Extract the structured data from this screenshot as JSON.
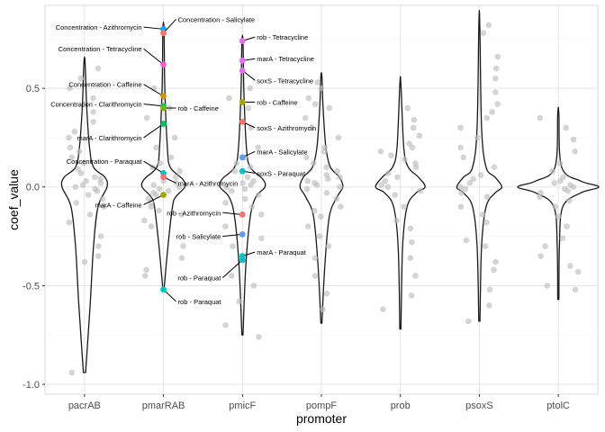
{
  "chart_data": {
    "type": "violin",
    "xlabel": "promoter",
    "ylabel": "coef_value",
    "ylim": [
      -1.05,
      0.92
    ],
    "yticks": [
      {
        "value": 0.5,
        "label": "0.5"
      },
      {
        "value": 0.0,
        "label": "0.0"
      },
      {
        "value": -0.5,
        "label": "-0.5"
      },
      {
        "value": -1.0,
        "label": "-1.0"
      }
    ],
    "categories": [
      "pacrAB",
      "pmarRAB",
      "pmicF",
      "pompF",
      "prob",
      "psoxS",
      "ptolC"
    ],
    "grid": true,
    "violins": [
      {
        "category": "pacrAB",
        "min": -0.94,
        "max": 0.63,
        "widths": [
          [
            -0.94,
            0.01
          ],
          [
            -0.6,
            0.05
          ],
          [
            -0.3,
            0.08
          ],
          [
            -0.1,
            0.12
          ],
          [
            0.0,
            0.2
          ],
          [
            0.05,
            0.18
          ],
          [
            0.1,
            0.08
          ],
          [
            0.2,
            0.045
          ],
          [
            0.4,
            0.02
          ],
          [
            0.63,
            0.005
          ]
        ]
      },
      {
        "category": "pmarRAB",
        "min": -0.52,
        "max": 0.8,
        "widths": [
          [
            -0.52,
            0.005
          ],
          [
            -0.3,
            0.04
          ],
          [
            -0.1,
            0.08
          ],
          [
            -0.05,
            0.11
          ],
          [
            0.0,
            0.19
          ],
          [
            0.04,
            0.17
          ],
          [
            0.1,
            0.06
          ],
          [
            0.2,
            0.035
          ],
          [
            0.5,
            0.012
          ],
          [
            0.8,
            0.005
          ]
        ]
      },
      {
        "category": "pmicF",
        "min": -0.75,
        "max": 0.74,
        "widths": [
          [
            -0.75,
            0.005
          ],
          [
            -0.4,
            0.03
          ],
          [
            -0.15,
            0.07
          ],
          [
            -0.05,
            0.12
          ],
          [
            0.0,
            0.2
          ],
          [
            0.04,
            0.18
          ],
          [
            0.1,
            0.07
          ],
          [
            0.2,
            0.035
          ],
          [
            0.5,
            0.012
          ],
          [
            0.74,
            0.005
          ]
        ]
      },
      {
        "category": "pompF",
        "min": -0.69,
        "max": 0.56,
        "widths": [
          [
            -0.69,
            0.005
          ],
          [
            -0.4,
            0.03
          ],
          [
            -0.15,
            0.07
          ],
          [
            -0.05,
            0.14
          ],
          [
            0.0,
            0.19
          ],
          [
            0.05,
            0.16
          ],
          [
            0.1,
            0.08
          ],
          [
            0.2,
            0.04
          ],
          [
            0.4,
            0.015
          ],
          [
            0.56,
            0.005
          ]
        ]
      },
      {
        "category": "prob",
        "min": -0.72,
        "max": 0.52,
        "widths": [
          [
            -0.72,
            0.005
          ],
          [
            -0.3,
            0.02
          ],
          [
            -0.1,
            0.06
          ],
          [
            -0.03,
            0.14
          ],
          [
            0.0,
            0.22
          ],
          [
            0.05,
            0.16
          ],
          [
            0.1,
            0.07
          ],
          [
            0.2,
            0.03
          ],
          [
            0.52,
            0.005
          ]
        ]
      },
      {
        "category": "psoxS",
        "min": -0.68,
        "max": 0.83,
        "widths": [
          [
            -0.68,
            0.005
          ],
          [
            -0.3,
            0.02
          ],
          [
            -0.1,
            0.06
          ],
          [
            -0.03,
            0.14
          ],
          [
            0.0,
            0.2
          ],
          [
            0.05,
            0.14
          ],
          [
            0.1,
            0.06
          ],
          [
            0.3,
            0.02
          ],
          [
            0.83,
            0.004
          ]
        ]
      },
      {
        "category": "ptolC",
        "min": -0.57,
        "max": 0.37,
        "widths": [
          [
            -0.57,
            0.005
          ],
          [
            -0.3,
            0.01
          ],
          [
            -0.1,
            0.04
          ],
          [
            -0.03,
            0.2
          ],
          [
            0.0,
            0.36
          ],
          [
            0.03,
            0.2
          ],
          [
            0.1,
            0.03
          ],
          [
            0.37,
            0.005
          ]
        ]
      }
    ],
    "points": {
      "pacrAB": [
        -0.94,
        -0.38,
        -0.35,
        -0.3,
        -0.25,
        -0.18,
        -0.14,
        -0.1,
        -0.08,
        -0.06,
        -0.04,
        -0.02,
        -0.01,
        0.0,
        0.01,
        0.02,
        0.03,
        0.04,
        0.05,
        0.07,
        0.09,
        0.12,
        0.15,
        0.18,
        0.2,
        0.25,
        0.28,
        0.33,
        0.38,
        0.45,
        0.5,
        0.55,
        0.6
      ],
      "pmarRAB": [
        -0.45,
        -0.42,
        -0.36,
        -0.3,
        -0.2,
        -0.17,
        -0.14,
        -0.12,
        -0.1,
        -0.08,
        -0.06,
        -0.04,
        -0.03,
        -0.02,
        -0.01,
        0.0,
        0.01,
        0.02,
        0.03,
        0.05,
        0.08,
        0.1,
        0.12,
        0.15,
        0.2,
        0.25,
        0.35,
        0.4,
        0.5
      ],
      "pmicF": [
        -0.76,
        -0.7,
        -0.58,
        -0.5,
        -0.45,
        -0.3,
        -0.26,
        -0.2,
        -0.14,
        -0.1,
        -0.08,
        -0.06,
        -0.04,
        -0.02,
        -0.01,
        0.0,
        0.01,
        0.02,
        0.03,
        0.05,
        0.08,
        0.1,
        0.12,
        0.15,
        0.2,
        0.3,
        0.4,
        0.45,
        0.5
      ],
      "pompF": [
        -0.62,
        -0.54,
        -0.45,
        -0.36,
        -0.3,
        -0.25,
        -0.2,
        -0.15,
        -0.12,
        -0.1,
        -0.06,
        -0.03,
        -0.01,
        0.0,
        0.01,
        0.02,
        0.03,
        0.04,
        0.05,
        0.06,
        0.08,
        0.1,
        0.12,
        0.15,
        0.18,
        0.2,
        0.25,
        0.3,
        0.35,
        0.4,
        0.42,
        0.45,
        0.5,
        0.53
      ],
      "prob": [
        -0.62,
        -0.55,
        -0.45,
        -0.36,
        -0.28,
        -0.21,
        -0.17,
        -0.1,
        -0.04,
        -0.02,
        0.0,
        0.01,
        0.03,
        0.05,
        0.07,
        0.1,
        0.12,
        0.14,
        0.16,
        0.18,
        0.2,
        0.22,
        0.26,
        0.3,
        0.34,
        0.4
      ],
      "psoxS": [
        -0.68,
        -0.6,
        -0.52,
        -0.42,
        -0.38,
        -0.3,
        -0.27,
        -0.18,
        -0.14,
        -0.1,
        -0.05,
        -0.03,
        -0.01,
        0.0,
        0.02,
        0.04,
        0.06,
        0.1,
        0.15,
        0.2,
        0.25,
        0.3,
        0.35,
        0.38,
        0.42,
        0.48,
        0.55,
        0.6,
        0.66,
        0.78,
        0.82
      ],
      "ptolC": [
        -0.52,
        -0.5,
        -0.43,
        -0.4,
        -0.35,
        -0.3,
        -0.26,
        -0.2,
        -0.15,
        -0.1,
        -0.07,
        -0.05,
        -0.03,
        -0.02,
        -0.01,
        0.0,
        0.01,
        0.02,
        0.03,
        0.05,
        0.08,
        0.12,
        0.18,
        0.24,
        0.3,
        0.35
      ]
    },
    "highlighted": [
      {
        "category": "pmarRAB",
        "y": 0.8,
        "color": "#00A9FF",
        "label": "Concentration - Azithromycin",
        "label_y": 0.81,
        "side": "left"
      },
      {
        "category": "pmarRAB",
        "y": 0.78,
        "color": "#F8766D",
        "label": "Concentration - Salicylate",
        "label_y": 0.85,
        "side": "right"
      },
      {
        "category": "pmarRAB",
        "y": 0.62,
        "color": "#FF61CC",
        "label": "Concentration - Tetracycline",
        "label_y": 0.7,
        "side": "left"
      },
      {
        "category": "pmarRAB",
        "y": 0.46,
        "color": "#CD9600",
        "label": "Concentration - Caffeine",
        "label_y": 0.52,
        "side": "left"
      },
      {
        "category": "pmarRAB",
        "y": 0.41,
        "color": "#00BE67",
        "label": "Concentration - Clarithromycin",
        "label_y": 0.42,
        "side": "left"
      },
      {
        "category": "pmarRAB",
        "y": 0.4,
        "color": "#7CAE00",
        "label": "rob - Caffeine",
        "label_y": 0.4,
        "side": "right"
      },
      {
        "category": "pmarRAB",
        "y": 0.32,
        "color": "#00BE67",
        "label": "marA - Clarithromycin",
        "label_y": 0.25,
        "side": "left"
      },
      {
        "category": "pmarRAB",
        "y": 0.07,
        "color": "#00BFC4",
        "label": "Concentration - Paraquat",
        "label_y": 0.13,
        "side": "left"
      },
      {
        "category": "pmarRAB",
        "y": 0.05,
        "color": "#F8766D",
        "label": "marA - Azithromycin",
        "label_y": 0.02,
        "side": "right"
      },
      {
        "category": "pmarRAB",
        "y": -0.04,
        "color": "#A3A500",
        "label": "marA - Caffeine",
        "label_y": -0.09,
        "side": "left"
      },
      {
        "category": "pmarRAB",
        "y": -0.52,
        "color": "#00BFC4",
        "label": "rob - Paraquat",
        "label_y": -0.58,
        "side": "right"
      },
      {
        "category": "pmicF",
        "y": 0.74,
        "color": "#E76BF3",
        "label": "rob - Tetracycline",
        "label_y": 0.76,
        "side": "right"
      },
      {
        "category": "pmicF",
        "y": 0.64,
        "color": "#E76BF3",
        "label": "marA - Tetracycline",
        "label_y": 0.65,
        "side": "right"
      },
      {
        "category": "pmicF",
        "y": 0.59,
        "color": "#E76BF3",
        "label": "soxS - Tetracycline",
        "label_y": 0.54,
        "side": "right"
      },
      {
        "category": "pmicF",
        "y": 0.43,
        "color": "#A3A500",
        "label": "rob - Caffeine",
        "label_y": 0.43,
        "side": "right"
      },
      {
        "category": "pmicF",
        "y": 0.33,
        "color": "#F8766D",
        "label": "soxS - Azithromycin",
        "label_y": 0.3,
        "side": "right"
      },
      {
        "category": "pmicF",
        "y": 0.15,
        "color": "#619CFF",
        "label": "marA - Salicylate",
        "label_y": 0.18,
        "side": "right"
      },
      {
        "category": "pmicF",
        "y": 0.08,
        "color": "#00BFC4",
        "label": "soxS - Paraquat",
        "label_y": 0.07,
        "side": "right"
      },
      {
        "category": "pmicF",
        "y": -0.14,
        "color": "#F8766D",
        "label": "rob - Azithromycin",
        "label_y": -0.13,
        "side": "left"
      },
      {
        "category": "pmicF",
        "y": -0.24,
        "color": "#619CFF",
        "label": "rob - Salicylate",
        "label_y": -0.25,
        "side": "left"
      },
      {
        "category": "pmicF",
        "y": -0.35,
        "color": "#00BFC4",
        "label": "marA - Paraquat",
        "label_y": -0.33,
        "side": "right"
      },
      {
        "category": "pmicF",
        "y": -0.37,
        "color": "#00BFC4",
        "label": "rob - Paraquat",
        "label_y": -0.46,
        "side": "left"
      }
    ]
  }
}
